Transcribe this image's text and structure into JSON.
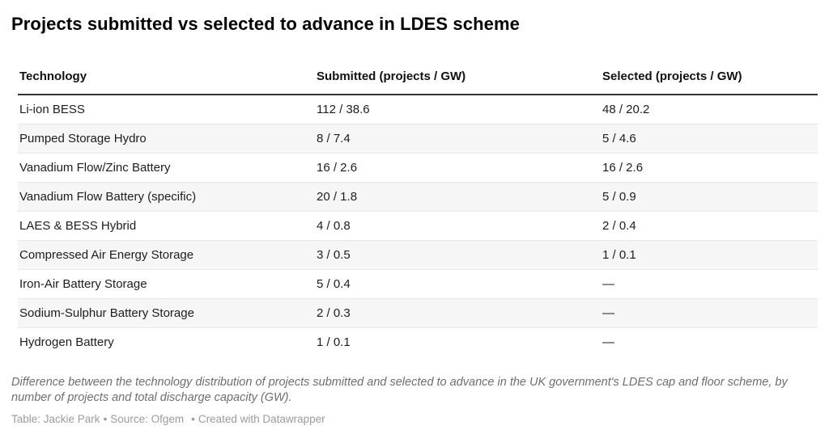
{
  "title": "Projects submitted vs selected to advance in LDES scheme",
  "table": {
    "columns": [
      "Technology",
      "Submitted (projects / GW)",
      "Selected (projects / GW)"
    ],
    "rows": [
      {
        "technology": "Li-ion BESS",
        "submitted": "112 / 38.6",
        "selected": "48 / 20.2"
      },
      {
        "technology": "Pumped Storage Hydro",
        "submitted": "8 / 7.4",
        "selected": "5 / 4.6"
      },
      {
        "technology": "Vanadium Flow/Zinc Battery",
        "submitted": "16 / 2.6",
        "selected": "16 / 2.6"
      },
      {
        "technology": "Vanadium Flow Battery (specific)",
        "submitted": "20 / 1.8",
        "selected": "5 / 0.9"
      },
      {
        "technology": "LAES & BESS Hybrid",
        "submitted": "4 / 0.8",
        "selected": "2 / 0.4"
      },
      {
        "technology": "Compressed Air Energy Storage",
        "submitted": "3 / 0.5",
        "selected": "1 / 0.1"
      },
      {
        "technology": "Iron-Air Battery Storage",
        "submitted": "5 / 0.4",
        "selected": "—"
      },
      {
        "technology": "Sodium-Sulphur Battery Storage",
        "submitted": "2 / 0.3",
        "selected": "—"
      },
      {
        "technology": "Hydrogen Battery",
        "submitted": "1 / 0.1",
        "selected": "—"
      }
    ]
  },
  "footer": {
    "note": "Difference between the technology distribution of projects submitted and selected to advance in the UK government's LDES cap and floor scheme, by number of projects and total discharge capacity (GW).",
    "byline": "Table: Jackie Park",
    "separator": "•",
    "source": "Source: Ofgem",
    "created_with": "Created with Datawrapper"
  },
  "colors": {
    "stripe": "#f6f6f6",
    "row_border": "#e9e9e9",
    "header_border": "#333333",
    "title_text": "#000000",
    "body_text": "#1d1d1d",
    "note_text": "#6e6e6e",
    "credit_text": "#9b9b9b"
  },
  "chart_data": {
    "type": "table",
    "title": "Projects submitted vs selected to advance in LDES scheme",
    "columns": [
      "Technology",
      "Submitted (projects / GW)",
      "Selected (projects / GW)"
    ],
    "rows": [
      [
        "Li-ion BESS",
        "112 / 38.6",
        "48 / 20.2"
      ],
      [
        "Pumped Storage Hydro",
        "8 / 7.4",
        "5 / 4.6"
      ],
      [
        "Vanadium Flow/Zinc Battery",
        "16 / 2.6",
        "16 / 2.6"
      ],
      [
        "Vanadium Flow Battery (specific)",
        "20 / 1.8",
        "5 / 0.9"
      ],
      [
        "LAES & BESS Hybrid",
        "4 / 0.8",
        "2 / 0.4"
      ],
      [
        "Compressed Air Energy Storage",
        "3 / 0.5",
        "1 / 0.1"
      ],
      [
        "Iron-Air Battery Storage",
        "5 / 0.4",
        "—"
      ],
      [
        "Sodium-Sulphur Battery Storage",
        "2 / 0.3",
        "—"
      ],
      [
        "Hydrogen Battery",
        "1 / 0.1",
        "—"
      ]
    ],
    "categories": [
      "Li-ion BESS",
      "Pumped Storage Hydro",
      "Vanadium Flow/Zinc Battery",
      "Vanadium Flow Battery (specific)",
      "LAES & BESS Hybrid",
      "Compressed Air Energy Storage",
      "Iron-Air Battery Storage",
      "Sodium-Sulphur Battery Storage",
      "Hydrogen Battery"
    ],
    "series": [
      {
        "name": "Submitted projects",
        "values": [
          112,
          8,
          16,
          20,
          4,
          3,
          5,
          2,
          1
        ]
      },
      {
        "name": "Submitted GW",
        "values": [
          38.6,
          7.4,
          2.6,
          1.8,
          0.8,
          0.5,
          0.4,
          0.3,
          0.1
        ]
      },
      {
        "name": "Selected projects",
        "values": [
          48,
          5,
          16,
          5,
          2,
          1,
          null,
          null,
          null
        ]
      },
      {
        "name": "Selected GW",
        "values": [
          20.2,
          4.6,
          2.6,
          0.9,
          0.4,
          0.1,
          null,
          null,
          null
        ]
      }
    ],
    "layout": {
      "zebra_striping": true,
      "legend": "none",
      "grid": "horizontal row rules"
    }
  }
}
